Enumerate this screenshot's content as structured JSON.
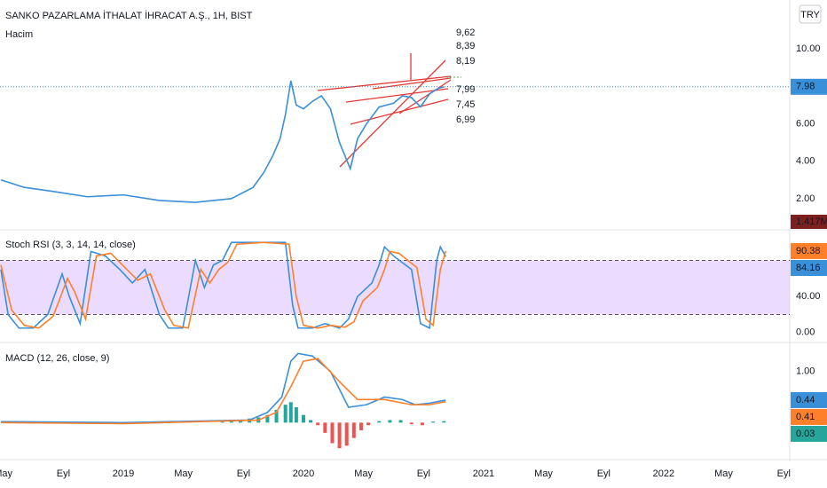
{
  "currency": "TRY",
  "annotations": [
    "9,62",
    "8,39",
    "8,19",
    "7,99",
    "7,45",
    "6,99"
  ],
  "chart_data": [
    {
      "type": "line",
      "title": "SANKO PAZARLAMA İTHALAT İHRACAT A.Ş., 1H, BIST",
      "subtitle": "Hacim",
      "volume_label": {
        "value": 1417000,
        "label": "1.417M"
      },
      "xlim": [
        2018.315,
        2022.7
      ],
      "ylim": [
        0.38,
        12.62
      ],
      "yticks": [
        {
          "value": 2,
          "label": "2.00"
        },
        {
          "value": 4,
          "label": "4.00"
        },
        {
          "value": 6,
          "label": "6.00"
        },
        {
          "value": 10,
          "label": "10.00"
        }
      ],
      "series": [
        {
          "color": "#3a8fd9",
          "last_label": 7.98,
          "x": [
            2018.32,
            2018.45,
            2018.6,
            2018.8,
            2019.0,
            2019.2,
            2019.4,
            2019.6,
            2019.72,
            2019.78,
            2019.83,
            2019.87,
            2019.9,
            2019.93,
            2019.96,
            2020.0,
            2020.05,
            2020.1,
            2020.15,
            2020.2,
            2020.26,
            2020.3,
            2020.35,
            2020.42,
            2020.5,
            2020.55,
            2020.6,
            2020.65,
            2020.7,
            2020.75,
            2020.78
          ],
          "values": [
            3.0,
            2.6,
            2.4,
            2.1,
            2.2,
            1.9,
            1.8,
            2.0,
            2.6,
            3.4,
            4.3,
            5.2,
            6.5,
            8.3,
            7.0,
            6.8,
            7.2,
            7.5,
            6.8,
            5.0,
            3.6,
            5.2,
            6.0,
            6.9,
            7.1,
            7.5,
            7.4,
            6.9,
            7.6,
            7.9,
            7.98
          ]
        }
      ]
    },
    {
      "type": "line",
      "title": "Stoch RSI (3, 3, 14, 14, close)",
      "xlim": [
        2018.315,
        2022.7
      ],
      "ylim": [
        -10,
        113
      ],
      "band": [
        20,
        80
      ],
      "yticks": [
        {
          "value": 0,
          "label": "0.00"
        },
        {
          "value": 40,
          "label": "40.00"
        }
      ],
      "series": [
        {
          "color": "#3a8fd9",
          "last_label": 84.16,
          "x": [
            2018.32,
            2018.36,
            2018.42,
            2018.5,
            2018.58,
            2018.66,
            2018.7,
            2018.76,
            2018.82,
            2018.9,
            2018.98,
            2019.05,
            2019.12,
            2019.2,
            2019.25,
            2019.33,
            2019.4,
            2019.45,
            2019.5,
            2019.55,
            2019.6,
            2019.75,
            2019.9,
            2019.94,
            2019.97,
            2020.05,
            2020.12,
            2020.2,
            2020.25,
            2020.3,
            2020.38,
            2020.42,
            2020.45,
            2020.5,
            2020.6,
            2020.65,
            2020.7,
            2020.74,
            2020.76,
            2020.79
          ],
          "values": [
            70,
            20,
            5,
            5,
            20,
            65,
            40,
            10,
            90,
            85,
            70,
            55,
            70,
            20,
            5,
            5,
            80,
            50,
            75,
            80,
            100,
            100,
            100,
            30,
            5,
            5,
            10,
            5,
            15,
            40,
            55,
            75,
            95,
            85,
            70,
            10,
            5,
            80,
            95,
            84.16
          ]
        },
        {
          "color": "#ff7f2a",
          "last_label": 90.38,
          "x": [
            2018.32,
            2018.38,
            2018.45,
            2018.53,
            2018.61,
            2018.69,
            2018.73,
            2018.79,
            2018.85,
            2018.93,
            2019.01,
            2019.08,
            2019.15,
            2019.23,
            2019.28,
            2019.36,
            2019.43,
            2019.48,
            2019.53,
            2019.58,
            2019.63,
            2019.78,
            2019.92,
            2019.96,
            2020.0,
            2020.08,
            2020.15,
            2020.23,
            2020.28,
            2020.33,
            2020.41,
            2020.45,
            2020.48,
            2020.53,
            2020.63,
            2020.68,
            2020.72,
            2020.76,
            2020.79
          ],
          "values": [
            75,
            25,
            8,
            5,
            18,
            60,
            45,
            15,
            85,
            88,
            72,
            58,
            65,
            25,
            8,
            5,
            70,
            55,
            70,
            78,
            98,
            100,
            98,
            40,
            8,
            5,
            8,
            6,
            12,
            35,
            50,
            70,
            90,
            88,
            72,
            15,
            8,
            70,
            90.38
          ]
        }
      ]
    },
    {
      "type": "line",
      "title": "MACD (12, 26, close, 9)",
      "xlim": [
        2018.315,
        2022.7
      ],
      "ylim": [
        -0.67,
        1.53
      ],
      "yticks": [
        {
          "value": 1,
          "label": "1.00"
        }
      ],
      "xticks": [
        {
          "value": 2018.333,
          "label": "May"
        },
        {
          "value": 2018.667,
          "label": "Eyl"
        },
        {
          "value": 2019,
          "label": "2019"
        },
        {
          "value": 2019.333,
          "label": "May"
        },
        {
          "value": 2019.667,
          "label": "Eyl"
        },
        {
          "value": 2020,
          "label": "2020"
        },
        {
          "value": 2020.333,
          "label": "May"
        },
        {
          "value": 2020.667,
          "label": "Eyl"
        },
        {
          "value": 2021,
          "label": "2021"
        },
        {
          "value": 2021.333,
          "label": "May"
        },
        {
          "value": 2021.667,
          "label": "Eyl"
        },
        {
          "value": 2022,
          "label": "2022"
        },
        {
          "value": 2022.333,
          "label": "May"
        },
        {
          "value": 2022.667,
          "label": "Eyl"
        }
      ],
      "series": [
        {
          "type": "bar",
          "color": "#26a69a",
          "negative_color": "#ef5350",
          "last_label": 0.03,
          "x": [
            2019.55,
            2019.6,
            2019.65,
            2019.7,
            2019.75,
            2019.8,
            2019.85,
            2019.9,
            2019.93,
            2019.96,
            2020.0,
            2020.04,
            2020.08,
            2020.12,
            2020.16,
            2020.2,
            2020.24,
            2020.28,
            2020.32,
            2020.36,
            2020.42,
            2020.48,
            2020.54,
            2020.6,
            2020.66,
            2020.72,
            2020.78
          ],
          "values": [
            0.02,
            0.03,
            0.05,
            0.08,
            0.1,
            0.15,
            0.25,
            0.35,
            0.4,
            0.3,
            0.15,
            0.05,
            -0.05,
            -0.2,
            -0.4,
            -0.5,
            -0.45,
            -0.3,
            -0.15,
            -0.05,
            0.03,
            0.05,
            0.05,
            -0.03,
            -0.05,
            0.02,
            0.03
          ]
        },
        {
          "color": "#3a8fd9",
          "last_label": 0.44,
          "x": [
            2018.32,
            2019.0,
            2019.7,
            2019.8,
            2019.88,
            2019.93,
            2019.97,
            2020.05,
            2020.15,
            2020.25,
            2020.35,
            2020.45,
            2020.55,
            2020.62,
            2020.7,
            2020.79
          ],
          "values": [
            0.02,
            0.0,
            0.05,
            0.2,
            0.5,
            1.2,
            1.35,
            1.3,
            1.0,
            0.3,
            0.35,
            0.5,
            0.45,
            0.35,
            0.38,
            0.44
          ]
        },
        {
          "color": "#ff7f2a",
          "last_label": 0.41,
          "x": [
            2018.32,
            2019.0,
            2019.75,
            2019.85,
            2019.93,
            2020.0,
            2020.08,
            2020.2,
            2020.3,
            2020.45,
            2020.6,
            2020.7,
            2020.79
          ],
          "values": [
            0.0,
            -0.02,
            0.05,
            0.2,
            0.7,
            1.2,
            1.25,
            0.8,
            0.45,
            0.45,
            0.35,
            0.35,
            0.41
          ]
        }
      ]
    }
  ]
}
